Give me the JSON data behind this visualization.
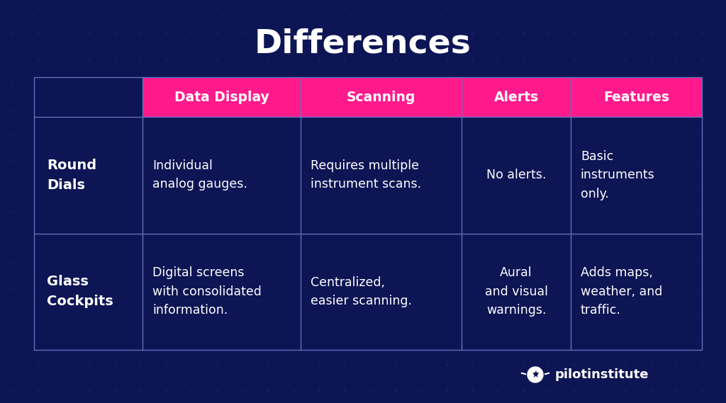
{
  "title": "Differences",
  "background_color": "#0d1554",
  "grid_color": "#1e2a7a",
  "table_border_color": "#6070bb",
  "header_bg_color": "#ff1a8c",
  "header_text_color": "#ffffff",
  "row_label_text_color": "#ffffff",
  "cell_text_color": "#ffffff",
  "title_color": "#ffffff",
  "header_labels": [
    "Data Display",
    "Scanning",
    "Alerts",
    "Features"
  ],
  "row_labels": [
    "Round\nDials",
    "Glass\nCockpits"
  ],
  "cell_data": [
    [
      "Individual\nanalog gauges.",
      "Requires multiple\ninstrument scans.",
      "No alerts.",
      "Basic\ninstruments\nonly."
    ],
    [
      "Digital screens\nwith consolidated\ninformation.",
      "Centralized,\neasier scanning.",
      "Aural\nand visual\nwarnings.",
      "Adds maps,\nweather, and\ntraffic."
    ]
  ],
  "logo_text": "pilotinstitute",
  "title_fontsize": 34,
  "header_fontsize": 13.5,
  "row_label_fontsize": 14,
  "cell_fontsize": 12.5,
  "logo_fontsize": 13
}
